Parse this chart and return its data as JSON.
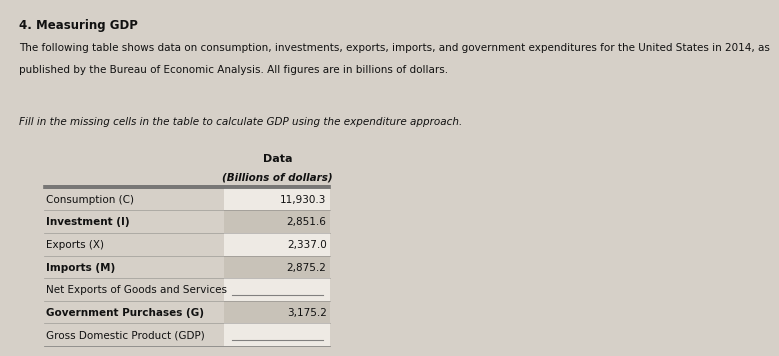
{
  "title": "4. Measuring GDP",
  "paragraph1": "The following table shows data on consumption, investments, exports, imports, and government expenditures for the United States in 2014, as",
  "paragraph2": "published by the Bureau of Economic Analysis. All figures are in billions of dollars.",
  "instruction": "Fill in the missing cells in the table to calculate GDP using the expenditure approach.",
  "col_header1": "Data",
  "col_header2": "(Billions of dollars)",
  "rows": [
    {
      "label": "Consumption (C)",
      "value": "11,930.3",
      "shaded": false
    },
    {
      "label": "Investment (I)",
      "value": "2,851.6",
      "shaded": true
    },
    {
      "label": "Exports (X)",
      "value": "2,337.0",
      "shaded": false
    },
    {
      "label": "Imports (M)",
      "value": "2,875.2",
      "shaded": true
    },
    {
      "label": "Net Exports of Goods and Services",
      "value": "",
      "shaded": false
    },
    {
      "label": "Government Purchases (G)",
      "value": "3,175.2",
      "shaded": true
    },
    {
      "label": "Gross Domestic Product (GDP)",
      "value": "",
      "shaded": false
    }
  ],
  "bg_color": "#d6d0c8",
  "shaded_color": "#c8c2b8",
  "white_color": "#eeeae4",
  "text_color": "#111111",
  "header_line_color": "#666666"
}
